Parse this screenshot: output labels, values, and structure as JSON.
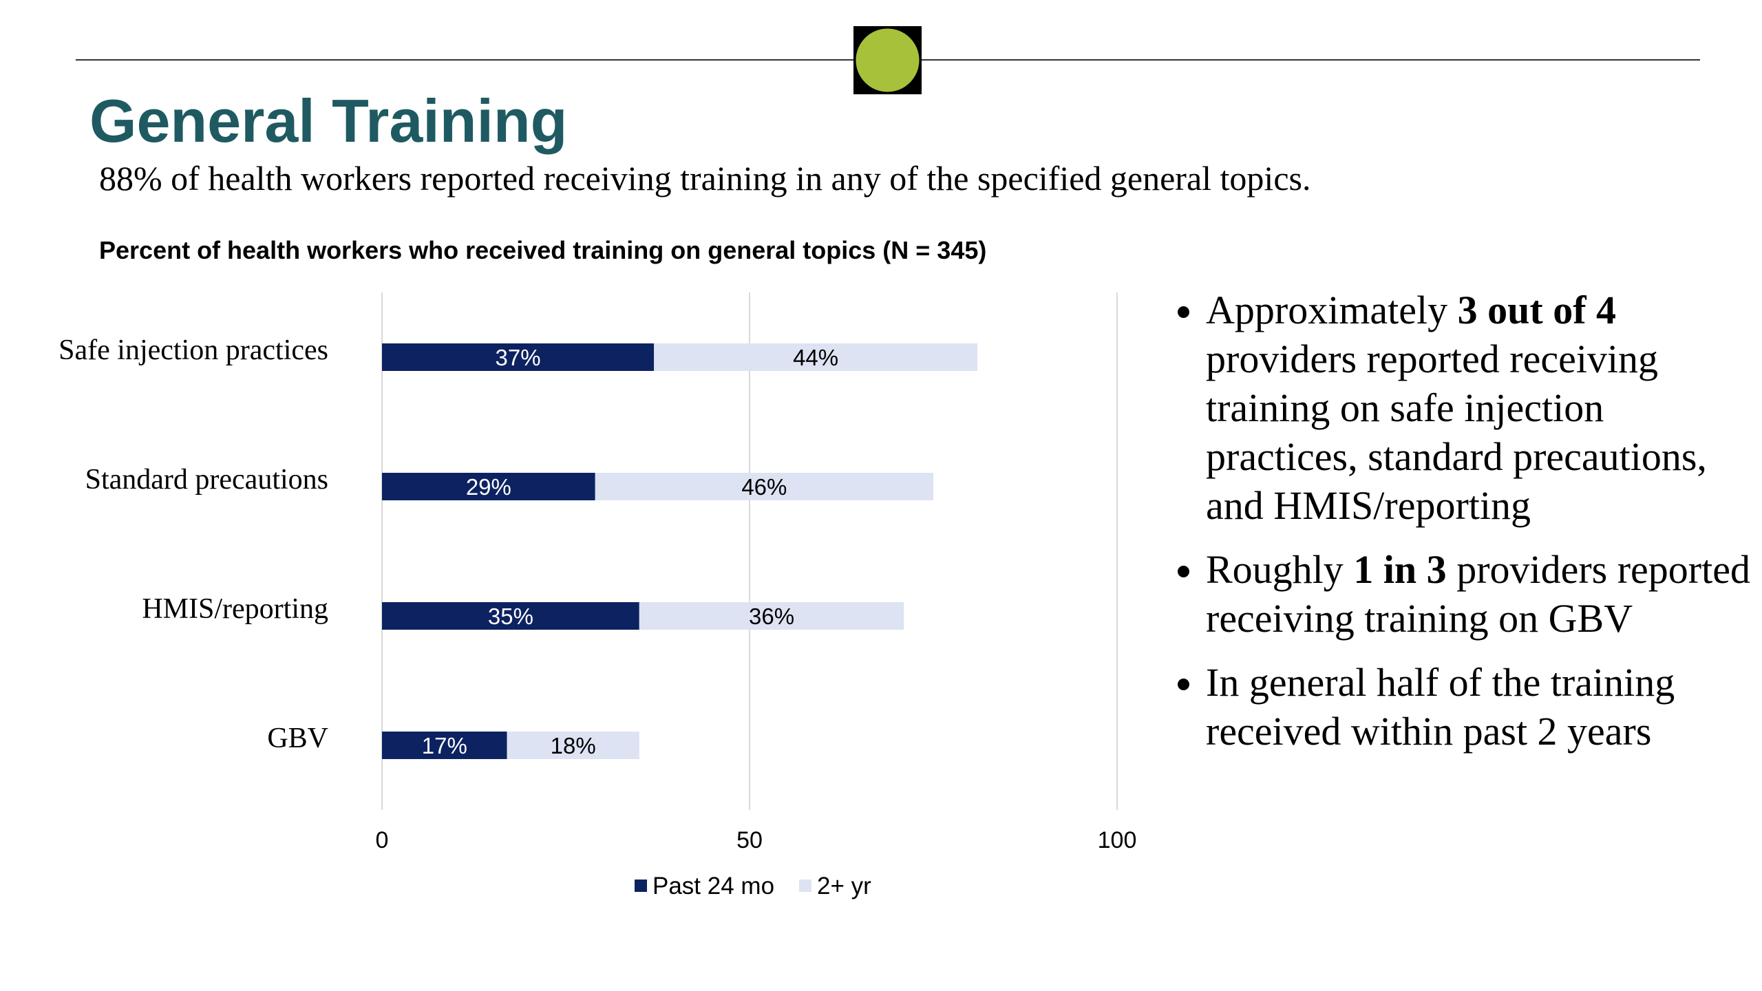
{
  "header": {
    "title": "General Training",
    "subtitle": "88% of health workers reported receiving training in any of the specified general topics."
  },
  "chart_data": {
    "type": "bar",
    "orientation": "horizontal",
    "stacked": true,
    "title": "Percent of health workers who received training on general topics (N = 345)",
    "categories": [
      "Safe injection practices",
      "Standard precautions",
      "HMIS/reporting",
      "GBV"
    ],
    "series": [
      {
        "name": "Past 24 mo",
        "color": "#0d2260",
        "label_color": "#ffffff",
        "values": [
          37,
          29,
          35,
          17
        ],
        "value_labels": [
          "37%",
          "29%",
          "35%",
          "17%"
        ]
      },
      {
        "name": "2+ yr",
        "color": "#dde3f2",
        "label_color": "#000000",
        "values": [
          44,
          46,
          36,
          18
        ],
        "value_labels": [
          "44%",
          "46%",
          "36%",
          "18%"
        ]
      }
    ],
    "xlim": [
      0,
      100
    ],
    "xticks": [
      0,
      50,
      100
    ],
    "grid": true,
    "legend": "bottom"
  },
  "bullets": [
    [
      "Approximately ",
      "3 out of 4",
      " providers reported receiving training on safe injection practices, standard precautions, and HMIS/reporting"
    ],
    [
      "Roughly ",
      "1 in 3",
      " providers reported receiving training on GBV"
    ],
    [
      "In general half of the training received within past 2 years"
    ]
  ]
}
